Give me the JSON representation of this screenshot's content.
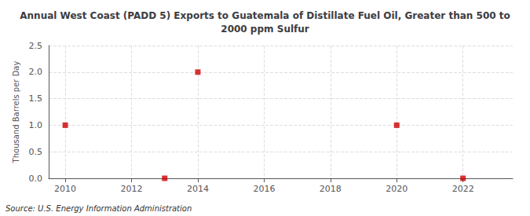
{
  "chart_data": {
    "type": "scatter",
    "title": "Annual West Coast (PADD 5) Exports to Guatemala of Distillate Fuel Oil, Greater than 500 to\n2000 ppm Sulfur",
    "ylabel": "Thousand Barrels per Day",
    "annotation": "Source: U.S. Energy Information Administration",
    "x": [
      2010,
      2013,
      2014,
      2020,
      2022
    ],
    "values": [
      1.0,
      0.0,
      2.0,
      1.0,
      0.0
    ],
    "color": "#cc0000",
    "marker": "square",
    "xlim": [
      2009.5,
      2023.5
    ],
    "xticks": [
      2010,
      2012,
      2014,
      2016,
      2018,
      2020,
      2022
    ],
    "ylim": [
      0.0,
      2.5
    ],
    "yticks": [
      {
        "value": 0,
        "label": "0.0"
      },
      0.5,
      {
        "value": 1,
        "label": "1.0"
      },
      1.5,
      {
        "value": 2,
        "label": "2.0"
      },
      2.5
    ],
    "grid": true
  }
}
